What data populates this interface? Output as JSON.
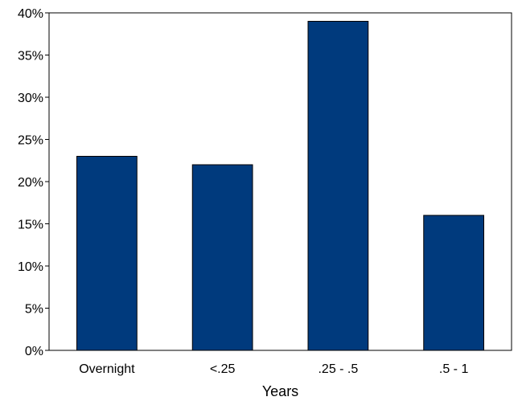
{
  "chart_data": {
    "type": "bar",
    "categories": [
      "Overnight",
      "<.25",
      ".25 - .5",
      ".5 - 1"
    ],
    "values": [
      23,
      22,
      39,
      16
    ],
    "value_unit": "%",
    "title": "",
    "xlabel": "Years",
    "ylabel": "",
    "ylim": [
      0,
      40
    ],
    "yticks": [
      0,
      5,
      10,
      15,
      20,
      25,
      30,
      35,
      40
    ],
    "ytick_labels": [
      "0%",
      "5%",
      "10%",
      "15%",
      "20%",
      "25%",
      "30%",
      "35%",
      "40%"
    ],
    "grid": false,
    "legend": "none",
    "bar_color": "#003A7D",
    "bar_edge_color": "#000000"
  }
}
